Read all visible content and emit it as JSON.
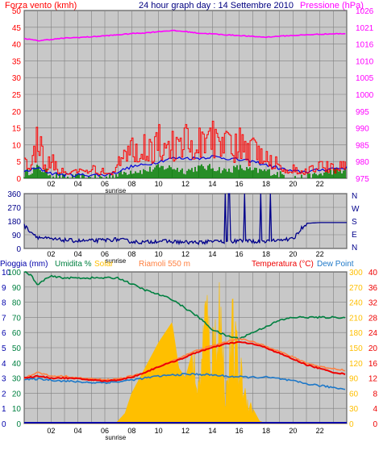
{
  "title": "24 hour graph day : 14 Settembre 2010",
  "colors": {
    "background": "#c8c8c8",
    "grid": "#808080",
    "wind_gust": "#ff0000",
    "wind_avg": "#0000dd",
    "wind_speed": "#008000",
    "pressure": "#ff00ff",
    "direction": "#00008b",
    "rain": "#0000aa",
    "humidity": "#008040",
    "solar": "#ffbf00",
    "temperature": "#ee0000",
    "dewpoint": "#1e78c8",
    "heat_index": "#ff8040"
  },
  "x_ticks": [
    "02",
    "04",
    "06",
    "08",
    "10",
    "12",
    "14",
    "16",
    "18",
    "20",
    "22"
  ],
  "sunrise_label": "sunrise",
  "sunrise_hour": 6.8,
  "panel1": {
    "left_label": "Forza vento (kmh)",
    "right_label": "Pressione (hPa)",
    "left_ticks": [
      "0",
      "5",
      "10",
      "15",
      "20",
      "25",
      "30",
      "35",
      "40",
      "45",
      "50"
    ],
    "right_ticks": [
      "975",
      "980",
      "985",
      "990",
      "995",
      "1000",
      "1005",
      "1010",
      "1016",
      "1021",
      "1026"
    ]
  },
  "panel2": {
    "left_ticks": [
      "0",
      "90",
      "180",
      "270",
      "360"
    ],
    "right_labels": [
      "N",
      "W",
      "S",
      "E",
      "N"
    ]
  },
  "panel3": {
    "labels": {
      "rain": "Pioggia (mm)",
      "humidity": "Umidita %",
      "solar": "Solar",
      "heat": "Riamoli 550 m",
      "temperature": "Temperatura (°C)",
      "dewpoint": "Dew Point"
    },
    "rain_ticks": [
      "0",
      "1",
      "2",
      "3",
      "4",
      "5",
      "6",
      "7",
      "8",
      "9",
      "10"
    ],
    "hum_ticks": [
      "0",
      "10",
      "20",
      "30",
      "40",
      "50",
      "60",
      "70",
      "80",
      "90",
      "100"
    ],
    "solar_ticks": [
      "0",
      "30",
      "60",
      "90",
      "120",
      "150",
      "180",
      "210",
      "240",
      "270",
      "300"
    ],
    "temp_ticks": [
      "0",
      "4",
      "8",
      "12",
      "16",
      "20",
      "24",
      "28",
      "32",
      "36",
      "40"
    ]
  },
  "chart_data": [
    {
      "type": "line",
      "title": "24 hour graph day : 14 Settembre 2010",
      "ylabel": "Forza vento (kmh)",
      "y2label": "Pressione (hPa)",
      "xlim": [
        0,
        24
      ],
      "ylim": [
        0,
        50
      ],
      "y2lim": [
        975,
        1026
      ],
      "grid": true,
      "series": [
        {
          "name": "Pressione (hPa)",
          "axis": "right",
          "x": [
            0,
            1,
            2,
            3,
            4,
            5,
            6,
            7,
            8,
            9,
            10,
            11,
            12,
            13,
            14,
            15,
            16,
            17,
            18,
            19,
            20,
            21,
            22,
            23,
            24
          ],
          "values": [
            1017.5,
            1016.8,
            1017.2,
            1017.6,
            1017.8,
            1018,
            1018.3,
            1018.6,
            1019,
            1019.2,
            1019.6,
            1019.9,
            1019.6,
            1019.1,
            1018.9,
            1018.6,
            1018.4,
            1018.1,
            1017.9,
            1018.2,
            1018.4,
            1018.6,
            1018.8,
            1018.9,
            1019
          ]
        },
        {
          "x": [
            0,
            0.5,
            1,
            1.5,
            2,
            2.5,
            3,
            3.5,
            4,
            4.5,
            5,
            5.5,
            6,
            6.5,
            7,
            7.5,
            8,
            8.5,
            9,
            9.5,
            10,
            10.5,
            11,
            11.5,
            12,
            12.5,
            13,
            13.5,
            14,
            14.5,
            15,
            15.5,
            16,
            16.5,
            17,
            17.5,
            18,
            18.5,
            19,
            19.5,
            20,
            20.5,
            21,
            21.5,
            22,
            22.5,
            23,
            23.5,
            24
          ],
          "values": [
            6,
            4,
            18,
            4,
            8,
            3,
            3,
            2,
            3,
            2,
            4,
            3,
            3,
            2,
            10,
            8,
            12,
            9,
            14,
            10,
            16,
            9,
            14,
            11,
            16,
            10,
            15,
            12,
            17,
            11,
            14,
            12,
            15,
            10,
            12,
            9,
            8,
            6,
            7,
            4,
            4,
            2,
            3,
            4,
            5,
            5,
            4,
            5,
            5
          ]
        },
        {
          "x": [
            0,
            1,
            2,
            3,
            4,
            5,
            6,
            7,
            8,
            9,
            10,
            11,
            12,
            13,
            14,
            15,
            16,
            17,
            18,
            19,
            20,
            21,
            22,
            23,
            24
          ],
          "values": [
            2,
            3,
            1.5,
            1,
            1,
            1,
            1,
            2,
            3.5,
            4,
            5,
            6,
            6,
            6,
            6.5,
            6,
            5.5,
            5,
            4,
            3,
            2,
            2,
            2.5,
            3,
            3
          ]
        },
        {
          "x": [
            0,
            1,
            2,
            3,
            4,
            5,
            6,
            7,
            8,
            9,
            10,
            11,
            12,
            13,
            14,
            15,
            16,
            17,
            18,
            19,
            20,
            21,
            22,
            23,
            24
          ],
          "values": [
            1,
            3,
            1,
            0,
            0,
            0,
            0,
            1,
            2,
            2,
            3,
            3,
            2,
            3,
            3,
            2,
            3,
            2,
            2,
            1,
            0,
            0,
            1,
            2,
            2
          ]
        }
      ]
    },
    {
      "type": "line",
      "ylim": [
        0,
        360
      ],
      "xlim": [
        0,
        24
      ],
      "grid": true,
      "series": [
        {
          "x": [
            0,
            0.5,
            1,
            2,
            3,
            4,
            5,
            6,
            7,
            8,
            9,
            10,
            11,
            12,
            13,
            14,
            15,
            16,
            17,
            18,
            19,
            20,
            20.5,
            21,
            22,
            23,
            24
          ],
          "values": [
            150,
            110,
            75,
            60,
            55,
            50,
            50,
            55,
            60,
            45,
            40,
            50,
            45,
            40,
            40,
            45,
            45,
            50,
            45,
            50,
            55,
            60,
            120,
            165,
            170,
            170,
            170
          ]
        }
      ]
    },
    {
      "type": "area",
      "ylabel": "Pioggia (mm)",
      "y2label": "Temperatura (°C)",
      "xlim": [
        0,
        24
      ],
      "grid": true,
      "series": [
        {
          "name": "Pioggia (mm)",
          "axis": "rain",
          "ylim": [
            0,
            10
          ],
          "x": [
            0,
            24
          ],
          "values": [
            0,
            0
          ]
        },
        {
          "name": "Umidita %",
          "axis": "humidity",
          "ylim": [
            0,
            100
          ],
          "x": [
            0,
            0.5,
            1,
            1.5,
            2,
            3,
            4,
            5,
            6,
            7,
            8,
            9,
            10,
            11,
            12,
            13,
            14,
            15,
            16,
            17,
            18,
            19,
            20,
            21,
            22,
            23,
            24
          ],
          "values": [
            100,
            98,
            91,
            95,
            97,
            96,
            96,
            96,
            96,
            96,
            92,
            88,
            85,
            82,
            76,
            70,
            62,
            58,
            56,
            60,
            64,
            68,
            70,
            70,
            70,
            70,
            70
          ]
        },
        {
          "name": "Solar",
          "axis": "solar",
          "ylim": [
            0,
            300
          ],
          "x": [
            0,
            6,
            6.8,
            7.5,
            8,
            9,
            10,
            10.5,
            11,
            11.5,
            12,
            12.5,
            13,
            13.5,
            14,
            14.5,
            15,
            15.5,
            16,
            16.5,
            17,
            17.5,
            18,
            24
          ],
          "values": [
            0,
            0,
            0,
            20,
            60,
            110,
            160,
            180,
            200,
            110,
            90,
            140,
            70,
            240,
            150,
            270,
            60,
            200,
            120,
            60,
            30,
            5,
            0,
            0
          ]
        },
        {
          "name": "Riamoli 550 m",
          "axis": "temp",
          "ylim": [
            0,
            40
          ],
          "x": [
            0,
            1,
            2,
            3,
            4,
            5,
            6,
            7,
            8,
            9,
            10,
            11,
            12,
            13,
            14,
            15,
            16,
            17,
            18,
            19,
            20,
            21,
            22,
            23,
            24
          ],
          "values": [
            12,
            13.5,
            12.5,
            12.5,
            12,
            11.8,
            11.5,
            11.8,
            12.5,
            13.5,
            15,
            16.5,
            18,
            19.5,
            20.5,
            21.5,
            22.5,
            21.5,
            20.5,
            19,
            17.5,
            16,
            15,
            14.5,
            14
          ]
        },
        {
          "name": "Temperatura (°C)",
          "axis": "temp",
          "ylim": [
            0,
            40
          ],
          "x": [
            0,
            1,
            2,
            3,
            4,
            5,
            6,
            7,
            8,
            9,
            10,
            11,
            12,
            13,
            14,
            15,
            16,
            17,
            18,
            19,
            20,
            21,
            22,
            23,
            24
          ],
          "values": [
            12,
            12.5,
            12,
            12,
            11.8,
            11.5,
            11.2,
            11.5,
            12.2,
            13.5,
            15,
            16.2,
            17.5,
            19,
            20,
            21,
            21.5,
            21,
            20,
            18.5,
            17,
            15.5,
            14.5,
            13.5,
            13
          ]
        },
        {
          "name": "Dew Point",
          "axis": "temp",
          "ylim": [
            0,
            40
          ],
          "x": [
            0,
            1,
            2,
            3,
            4,
            5,
            6,
            7,
            8,
            9,
            10,
            11,
            12,
            13,
            14,
            15,
            16,
            17,
            18,
            19,
            20,
            21,
            22,
            23,
            24
          ],
          "values": [
            11.5,
            11.8,
            11.5,
            11.2,
            11,
            10.8,
            10.8,
            11,
            11.5,
            12,
            12.5,
            12.8,
            13,
            13,
            12.8,
            12.5,
            12.3,
            12.2,
            12.2,
            11.8,
            11.2,
            10.5,
            10,
            9.5,
            9
          ]
        }
      ]
    }
  ]
}
